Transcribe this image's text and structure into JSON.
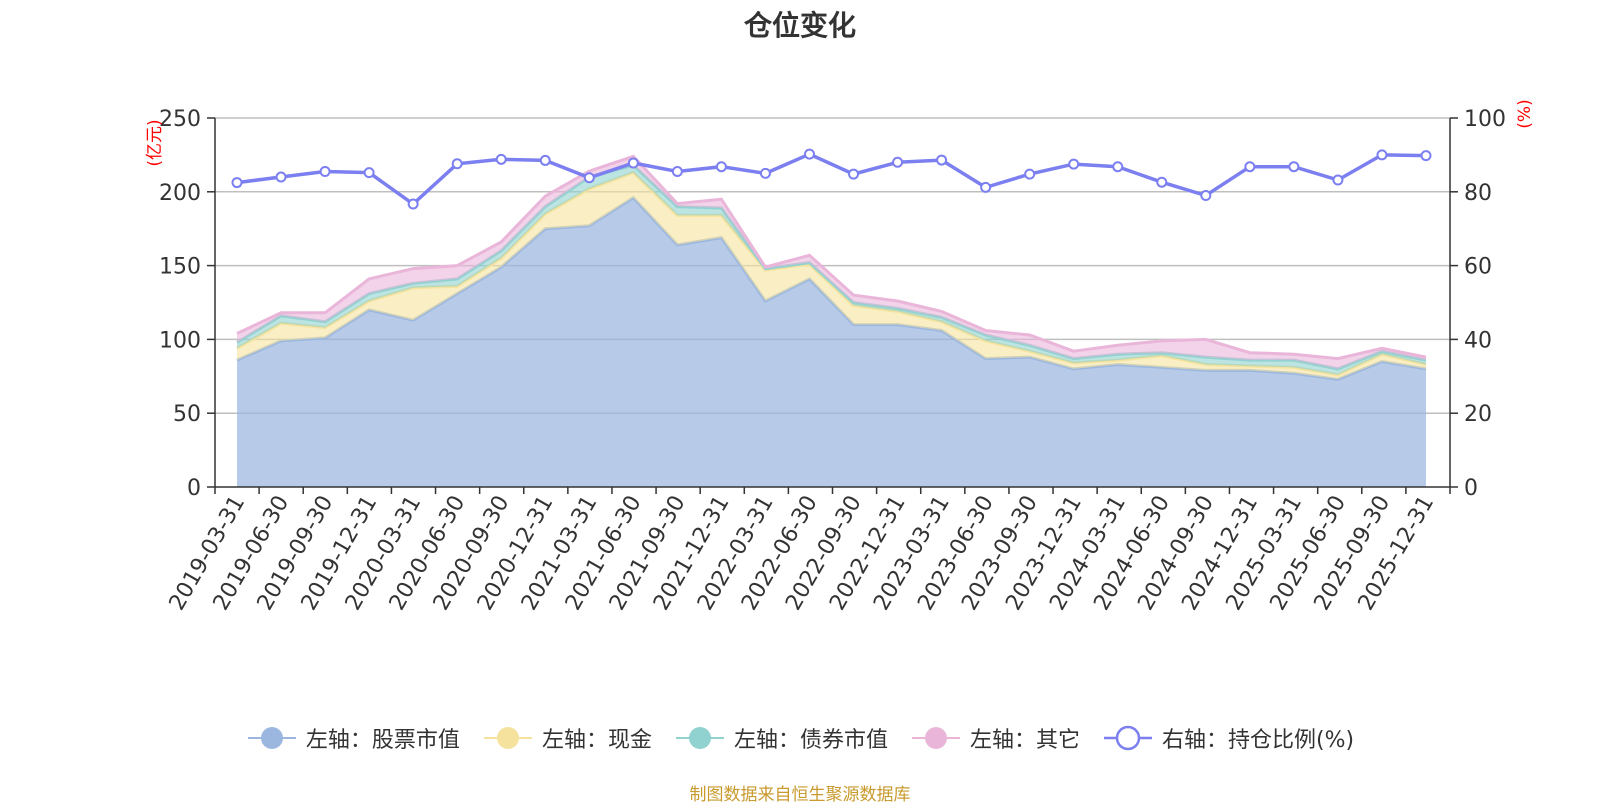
{
  "title": "仓位变化",
  "source": "制图数据来自恒生聚源数据库",
  "colors": {
    "stock": "#9bb7e0",
    "cash": "#f5e29c",
    "bond": "#8fd2d0",
    "other": "#e9b6da",
    "ratio": "#7b7ff0",
    "unit_label": "#ff0000",
    "grid": "#bfbfbf",
    "axis": "#333333"
  },
  "legend": [
    {
      "label": "左轴：股票市值",
      "icon": "filled-circle",
      "key": "stock"
    },
    {
      "label": "左轴：现金",
      "icon": "filled-circle",
      "key": "cash"
    },
    {
      "label": "左轴：债券市值",
      "icon": "filled-circle",
      "key": "bond"
    },
    {
      "label": "左轴：其它",
      "icon": "filled-circle",
      "key": "other"
    },
    {
      "label": "右轴：持仓比例(%)",
      "icon": "hollow-circle",
      "key": "ratio"
    }
  ],
  "chart_data": {
    "type": "area",
    "stacked": true,
    "title": "仓位变化",
    "left_axis": {
      "unit_label": "(亿元)",
      "range": [
        0,
        250
      ],
      "ticks": [
        "0",
        "50",
        "100",
        "150",
        "200",
        "250"
      ]
    },
    "right_axis": {
      "unit_label": "(%)",
      "range": [
        0,
        100
      ],
      "ticks": [
        "0",
        "20",
        "40",
        "60",
        "80",
        "100"
      ]
    },
    "grid": true,
    "legend_position": "bottom",
    "categories": [
      "2019-03-31",
      "2019-06-30",
      "2019-09-30",
      "2019-12-31",
      "2020-03-31",
      "2020-06-30",
      "2020-09-30",
      "2020-12-31",
      "2021-03-31",
      "2021-06-30",
      "2021-09-30",
      "2021-12-31",
      "2022-03-31",
      "2022-06-30",
      "2022-09-30",
      "2022-12-31",
      "2023-03-31",
      "2023-06-30",
      "2023-09-30",
      "2023-12-31",
      "2024-03-31",
      "2024-06-30",
      "2024-09-30",
      "2024-12-31",
      "2025-03-31",
      "2025-06-30",
      "2025-09-30",
      "2025-12-31"
    ],
    "series": [
      {
        "name": "左轴：股票市值",
        "axis": "left",
        "type": "area",
        "values": [
          86,
          99,
          101,
          120,
          113,
          131,
          149,
          175,
          177,
          196,
          164,
          169,
          126,
          141,
          110,
          110,
          106,
          87,
          88,
          80,
          83,
          81,
          79,
          79,
          77,
          73,
          85,
          80
        ]
      },
      {
        "name": "左轴：现金",
        "axis": "left",
        "type": "area",
        "values": [
          8,
          12,
          7,
          6,
          22,
          5,
          6,
          10,
          25,
          17,
          20,
          15,
          21,
          10,
          13,
          9,
          6,
          12,
          4,
          4,
          3,
          8,
          4,
          3,
          4,
          3,
          5,
          3
        ]
      },
      {
        "name": "左轴：债券市值",
        "axis": "left",
        "type": "area",
        "values": [
          4,
          5,
          4,
          5,
          3,
          5,
          5,
          5,
          8,
          5,
          6,
          5,
          1,
          1,
          2,
          2,
          3,
          4,
          4,
          3,
          4,
          2,
          5,
          4,
          5,
          4,
          2,
          3
        ]
      },
      {
        "name": "左轴：其它",
        "axis": "left",
        "type": "area",
        "values": [
          6,
          2,
          6,
          10,
          10,
          9,
          6,
          7,
          4,
          6,
          2,
          6,
          1,
          5,
          5,
          5,
          4,
          3,
          7,
          5,
          6,
          8,
          12,
          5,
          4,
          7,
          2,
          2
        ]
      },
      {
        "name": "右轴：持仓比例(%)",
        "axis": "right",
        "type": "line",
        "values": [
          82.5,
          84,
          85.5,
          85.2,
          76.7,
          87.6,
          88.8,
          88.5,
          83.8,
          87.8,
          85.5,
          86.8,
          85,
          90.2,
          84.8,
          88,
          88.6,
          81.2,
          84.8,
          87.5,
          86.8,
          82.6,
          79,
          86.8,
          86.8,
          83.2,
          90,
          89.8
        ]
      }
    ]
  }
}
